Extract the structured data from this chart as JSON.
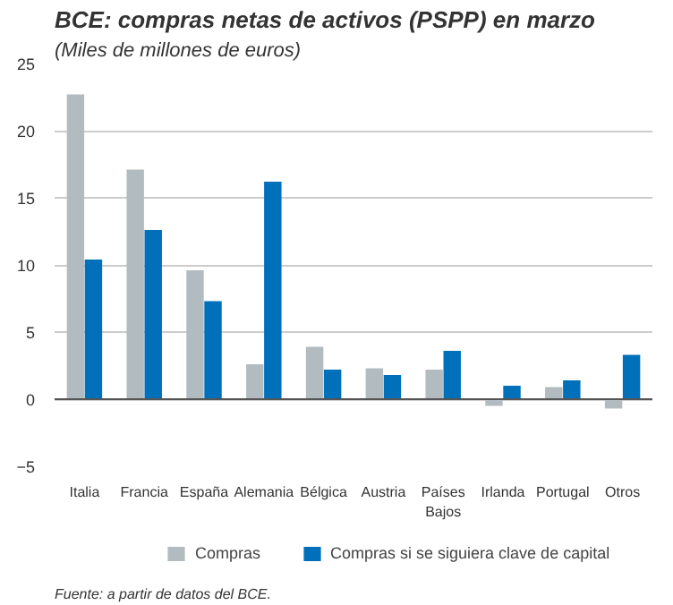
{
  "chart_data": {
    "type": "bar",
    "title": "BCE: compras netas de activos (PSPP) en marzo",
    "subtitle": "(Miles de millones de euros)",
    "categories": [
      "Italia",
      "Francia",
      "España",
      "Alemania",
      "Bélgica",
      "Austria",
      "Países\nBajos",
      "Irlanda",
      "Portugal",
      "Otros"
    ],
    "series": [
      {
        "name": "Compras",
        "color": "#b2bcc0",
        "values": [
          22.7,
          17.1,
          9.6,
          2.6,
          3.9,
          2.3,
          2.2,
          -0.5,
          0.9,
          -0.7
        ]
      },
      {
        "name": "Compras si se siguiera clave de capital",
        "color": "#0070ba",
        "values": [
          10.4,
          12.6,
          7.3,
          16.2,
          2.2,
          1.8,
          3.6,
          1.0,
          1.4,
          3.3
        ]
      }
    ],
    "ylim": [
      -5,
      25
    ],
    "yticks": [
      -5,
      0,
      5,
      10,
      15,
      20,
      25
    ],
    "grid": "y",
    "legend": "bottom",
    "annotations": [
      "Fuente: a partir de datos del BCE."
    ]
  }
}
